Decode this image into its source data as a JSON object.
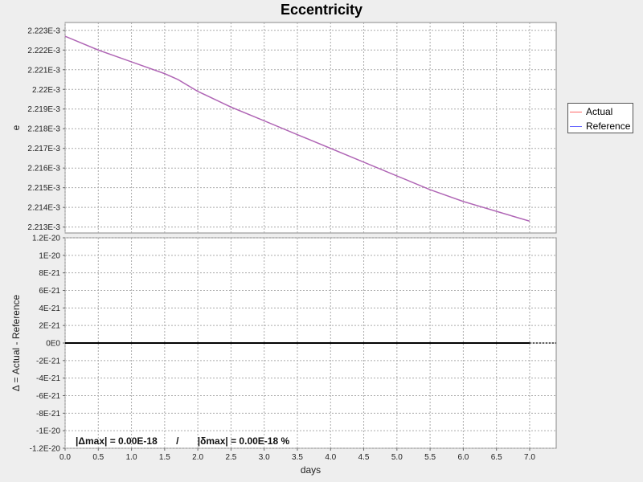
{
  "title": "Eccentricity",
  "legend": {
    "items": [
      {
        "label": "Actual",
        "color": "#ff6666"
      },
      {
        "label": "Reference",
        "color": "#6666ff"
      }
    ]
  },
  "stats_text": "|Δmax| = 0.00E-18       /       |δmax| = 0.00E-18 %",
  "chart_data": [
    {
      "type": "line",
      "ylabel": "e",
      "xlabel": "",
      "xlim": [
        0,
        7.4
      ],
      "ylim": [
        0.0022127,
        0.0022234
      ],
      "yticks": [
        {
          "v": 0.002223,
          "label": "2.223E-3"
        },
        {
          "v": 0.002222,
          "label": "2.222E-3"
        },
        {
          "v": 0.002221,
          "label": "2.221E-3"
        },
        {
          "v": 0.00222,
          "label": "2.22E-3"
        },
        {
          "v": 0.002219,
          "label": "2.219E-3"
        },
        {
          "v": 0.002218,
          "label": "2.218E-3"
        },
        {
          "v": 0.002217,
          "label": "2.217E-3"
        },
        {
          "v": 0.002216,
          "label": "2.216E-3"
        },
        {
          "v": 0.002215,
          "label": "2.215E-3"
        },
        {
          "v": 0.002214,
          "label": "2.214E-3"
        },
        {
          "v": 0.002213,
          "label": "2.213E-3"
        }
      ],
      "grid": true,
      "series": [
        {
          "name": "Actual",
          "color": "#ff6666",
          "x": [
            0.0,
            0.5,
            1.0,
            1.5,
            1.7,
            2.0,
            2.5,
            3.0,
            3.5,
            4.0,
            4.5,
            5.0,
            5.5,
            6.0,
            6.5,
            7.0
          ],
          "y": [
            0.0022227,
            0.002222,
            0.0022214,
            0.0022208,
            0.0022205,
            0.0022199,
            0.0022191,
            0.0022184,
            0.0022177,
            0.002217,
            0.0022163,
            0.0022156,
            0.0022149,
            0.0022143,
            0.0022138,
            0.0022133
          ]
        },
        {
          "name": "Reference",
          "color": "#6666ff",
          "x": [
            0.0,
            0.5,
            1.0,
            1.5,
            1.7,
            2.0,
            2.5,
            3.0,
            3.5,
            4.0,
            4.5,
            5.0,
            5.5,
            6.0,
            6.5,
            7.0
          ],
          "y": [
            0.0022227,
            0.002222,
            0.0022214,
            0.0022208,
            0.0022205,
            0.0022199,
            0.0022191,
            0.0022184,
            0.0022177,
            0.002217,
            0.0022163,
            0.0022156,
            0.0022149,
            0.0022143,
            0.0022138,
            0.0022133
          ]
        }
      ]
    },
    {
      "type": "line",
      "ylabel": "Δ = Actual - Reference",
      "xlabel": "days",
      "xlim": [
        0,
        7.4
      ],
      "ylim": [
        -1.2e-20,
        1.2e-20
      ],
      "xticks": [
        {
          "v": 0.0,
          "label": "0.0"
        },
        {
          "v": 0.5,
          "label": "0.5"
        },
        {
          "v": 1.0,
          "label": "1.0"
        },
        {
          "v": 1.5,
          "label": "1.5"
        },
        {
          "v": 2.0,
          "label": "2.0"
        },
        {
          "v": 2.5,
          "label": "2.5"
        },
        {
          "v": 3.0,
          "label": "3.0"
        },
        {
          "v": 3.5,
          "label": "3.5"
        },
        {
          "v": 4.0,
          "label": "4.0"
        },
        {
          "v": 4.5,
          "label": "4.5"
        },
        {
          "v": 5.0,
          "label": "5.0"
        },
        {
          "v": 5.5,
          "label": "5.5"
        },
        {
          "v": 6.0,
          "label": "6.0"
        },
        {
          "v": 6.5,
          "label": "6.5"
        },
        {
          "v": 7.0,
          "label": "7.0"
        }
      ],
      "yticks": [
        {
          "v": 1.2e-20,
          "label": "1.2E-20"
        },
        {
          "v": 1e-20,
          "label": "1E-20"
        },
        {
          "v": 8e-21,
          "label": "8E-21"
        },
        {
          "v": 6e-21,
          "label": "6E-21"
        },
        {
          "v": 4e-21,
          "label": "4E-21"
        },
        {
          "v": 2e-21,
          "label": "2E-21"
        },
        {
          "v": 0,
          "label": "0E0"
        },
        {
          "v": -2e-21,
          "label": "-2E-21"
        },
        {
          "v": -4e-21,
          "label": "-4E-21"
        },
        {
          "v": -6e-21,
          "label": "-6E-21"
        },
        {
          "v": -8e-21,
          "label": "-8E-21"
        },
        {
          "v": -1e-20,
          "label": "-1E-20"
        },
        {
          "v": -1.2e-20,
          "label": "-1.2E-20"
        }
      ],
      "grid": true,
      "series": [
        {
          "color": "#000000",
          "x": [
            0.0,
            7.0
          ],
          "y": [
            0,
            0
          ]
        }
      ]
    }
  ]
}
